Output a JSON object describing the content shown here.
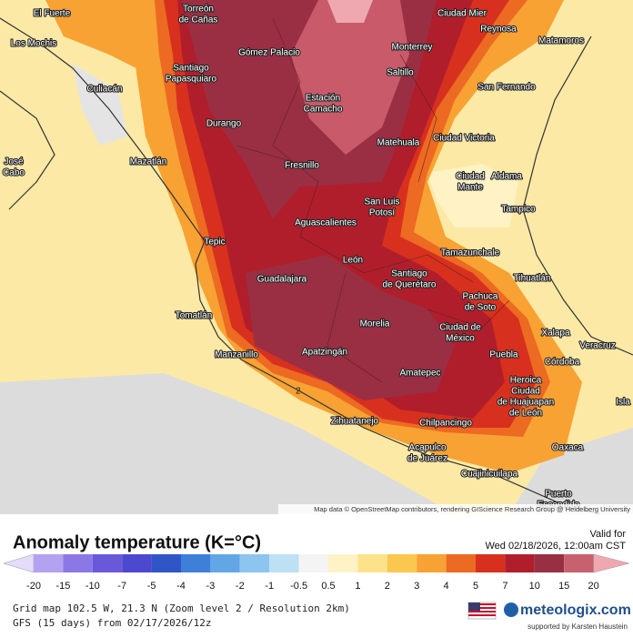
{
  "map": {
    "cities": [
      {
        "lines": [
          "El Fuerte"
        ]
      },
      {
        "lines": [
          "Torreón",
          "de Cañas"
        ]
      },
      {
        "lines": [
          "Ciudad Mier"
        ]
      },
      {
        "lines": [
          "Reynosa"
        ]
      },
      {
        "lines": [
          "Matamoros"
        ]
      },
      {
        "lines": [
          "Los Mochis"
        ]
      },
      {
        "lines": [
          "Gómez Palacio"
        ]
      },
      {
        "lines": [
          "Monterrey"
        ]
      },
      {
        "lines": [
          "Santiago",
          "Papasquiaro"
        ]
      },
      {
        "lines": [
          "Saltillo"
        ]
      },
      {
        "lines": [
          "Culiacán"
        ]
      },
      {
        "lines": [
          "San Fernando"
        ]
      },
      {
        "lines": [
          "Estación",
          "Camacho"
        ]
      },
      {
        "lines": [
          "Durango"
        ]
      },
      {
        "lines": [
          "Matehuala"
        ]
      },
      {
        "lines": [
          "Ciudad Victoria"
        ]
      },
      {
        "lines": [
          "Mazatlán"
        ]
      },
      {
        "lines": [
          "Fresnillo"
        ]
      },
      {
        "lines": [
          "Ciudad",
          "Mante"
        ]
      },
      {
        "lines": [
          "Aldama"
        ]
      },
      {
        "lines": [
          "José",
          "Cabo"
        ]
      },
      {
        "lines": [
          "San Luis",
          "Potosí"
        ]
      },
      {
        "lines": [
          "Tampico"
        ]
      },
      {
        "lines": [
          "Aguascalientes"
        ]
      },
      {
        "lines": [
          "Tepic"
        ]
      },
      {
        "lines": [
          "Tamazunchale"
        ]
      },
      {
        "lines": [
          "León"
        ]
      },
      {
        "lines": [
          "Guadalajara"
        ]
      },
      {
        "lines": [
          "Santiago",
          "de Querétaro"
        ]
      },
      {
        "lines": [
          "Tihuatlán"
        ]
      },
      {
        "lines": [
          "Pachuca",
          "de Soto"
        ]
      },
      {
        "lines": [
          "Tomatlán"
        ]
      },
      {
        "lines": [
          "Morelia"
        ]
      },
      {
        "lines": [
          "Ciudad de",
          "México"
        ]
      },
      {
        "lines": [
          "Xalapa"
        ]
      },
      {
        "lines": [
          "Veracruz"
        ]
      },
      {
        "lines": [
          "Manzanillo"
        ]
      },
      {
        "lines": [
          "Apatzingán"
        ]
      },
      {
        "lines": [
          "Puebla"
        ]
      },
      {
        "lines": [
          "Córdoba"
        ]
      },
      {
        "lines": [
          "Amatepec"
        ]
      },
      {
        "lines": [
          "Heroica",
          "Ciudad",
          "de Huajuapan",
          "de León"
        ]
      },
      {
        "lines": [
          "Isla"
        ]
      },
      {
        "lines": [
          "Zihuatanejo"
        ]
      },
      {
        "lines": [
          "Chilpancingo"
        ]
      },
      {
        "lines": [
          "Acapulco",
          "de Juárez"
        ]
      },
      {
        "lines": [
          "Oaxaca"
        ]
      },
      {
        "lines": [
          "Cuajinicuilapa"
        ]
      },
      {
        "lines": [
          "Puerto",
          "Escondido"
        ]
      }
    ],
    "contour_label": "2",
    "attribution": "Map data © OpenStreetMap contributors, rendering GIScience Research Group @ Heidelberg University"
  },
  "legend": {
    "title": "Anomaly temperature (K=°C)",
    "valid_label": "Valid for",
    "valid_time": "Wed 02/18/2026, 12:00am CST",
    "labels": [
      "-20",
      "-15",
      "-10",
      "-7",
      "-5",
      "-4",
      "-3",
      "-2",
      "-1",
      "-0.5",
      "0.5",
      "1",
      "2",
      "3",
      "4",
      "5",
      "7",
      "10",
      "15",
      "20"
    ],
    "colors": [
      "#e4dcf8",
      "#b2a2ef",
      "#8b78e6",
      "#6a58db",
      "#4c48cf",
      "#2f55c7",
      "#3d7fd9",
      "#63a6e6",
      "#8cc5ef",
      "#bde0f3",
      "#f4f4f4",
      "#fff2c4",
      "#fde28a",
      "#fbc74e",
      "#f7a233",
      "#ec6a22",
      "#d8301e",
      "#b01e2c",
      "#9a2f44",
      "#c8606e",
      "#f0a8b0"
    ]
  },
  "footer": {
    "grid": "Grid map 102.5 W, 21.3 N (Zoom level 2 / Resolution 2km)",
    "model": "GFS (15 days) from 02/17/2026/12z",
    "brand": "meteologix.com",
    "support": "supported by Karsten Haustein"
  }
}
